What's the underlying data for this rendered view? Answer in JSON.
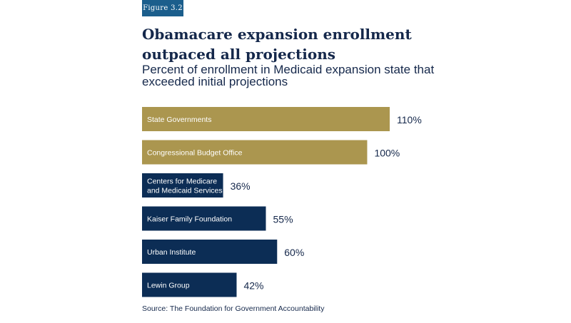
{
  "badge": "Figure 3.2",
  "title": "Obamacare expansion enrollment outpaced all projections",
  "subtitle": "Percent of enrollment in Medicaid expansion state that exceeded initial projections",
  "source": "Source: The Foundation for Government Accountability",
  "colors": {
    "gold": "#ab964f",
    "navy": "#0c2d55",
    "text": "#15284b"
  },
  "chart_data": {
    "type": "bar",
    "orientation": "horizontal",
    "title": "Obamacare expansion enrollment outpaced all projections",
    "subtitle": "Percent of enrollment in Medicaid expansion state that exceeded initial projections",
    "xlabel": "",
    "ylabel": "",
    "grid": false,
    "categories": [
      "State Governments",
      "Congressional Budget Office",
      "Centers for Medicare and Medicaid Services",
      "Kaiser Family Foundation",
      "Urban Institute",
      "Lewin Group"
    ],
    "category_lines": [
      [
        "State Governments"
      ],
      [
        "Congressional Budget Office"
      ],
      [
        "Centers for Medicare",
        "and Medicaid Services"
      ],
      [
        "Kaiser Family Foundation"
      ],
      [
        "Urban Institute"
      ],
      [
        "Lewin Group"
      ]
    ],
    "values": [
      110,
      100,
      36,
      55,
      60,
      42
    ],
    "value_labels": [
      "110%",
      "100%",
      "36%",
      "55%",
      "60%",
      "42%"
    ],
    "bar_colors": [
      "gold",
      "gold",
      "navy",
      "navy",
      "navy",
      "navy"
    ],
    "xlim": [
      0,
      110
    ]
  }
}
